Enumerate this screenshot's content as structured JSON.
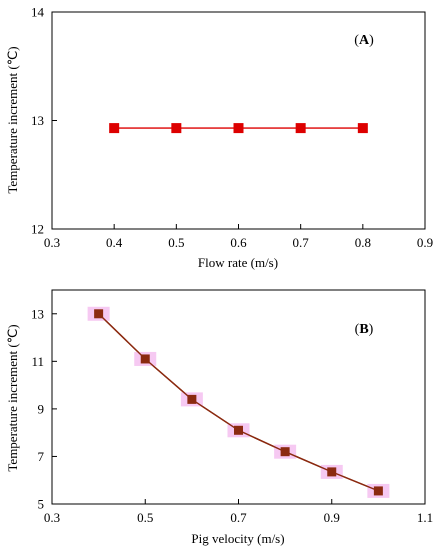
{
  "chart_data": [
    {
      "type": "line",
      "panel_label": "(A)",
      "panel_label_letter": "A",
      "xlabel": "Flow rate (m/s)",
      "ylabel": "Temperature increment (℃)",
      "xlim": [
        0.3,
        0.9
      ],
      "ylim": [
        12,
        14
      ],
      "xticks": [
        "0.3",
        "0.4",
        "0.5",
        "0.6",
        "0.7",
        "0.8",
        "0.9"
      ],
      "yticks": [
        "12",
        "13",
        "14"
      ],
      "grid": false,
      "series": [
        {
          "color": "#dd0000",
          "marker": "square",
          "x": [
            0.4,
            0.5,
            0.6,
            0.7,
            0.8
          ],
          "y": [
            12.93,
            12.93,
            12.93,
            12.93,
            12.93
          ]
        }
      ]
    },
    {
      "type": "line",
      "panel_label": "(B)",
      "panel_label_letter": "B",
      "xlabel": "Pig velocity (m/s)",
      "ylabel": "Temperature increment (℃)",
      "xlim": [
        0.3,
        1.1
      ],
      "ylim": [
        5,
        14
      ],
      "xticks": [
        "0.3",
        "0.5",
        "0.7",
        "0.9",
        "1.1"
      ],
      "yticks": [
        "5",
        "7",
        "9",
        "11",
        "13"
      ],
      "grid": false,
      "series": [
        {
          "color": "#8b2a10",
          "highlight_color": "#f5bff0",
          "marker": "square",
          "x": [
            0.4,
            0.5,
            0.6,
            0.7,
            0.8,
            0.9,
            1.0
          ],
          "y": [
            13.0,
            11.1,
            9.4,
            8.1,
            7.2,
            6.35,
            5.55
          ]
        }
      ]
    }
  ]
}
